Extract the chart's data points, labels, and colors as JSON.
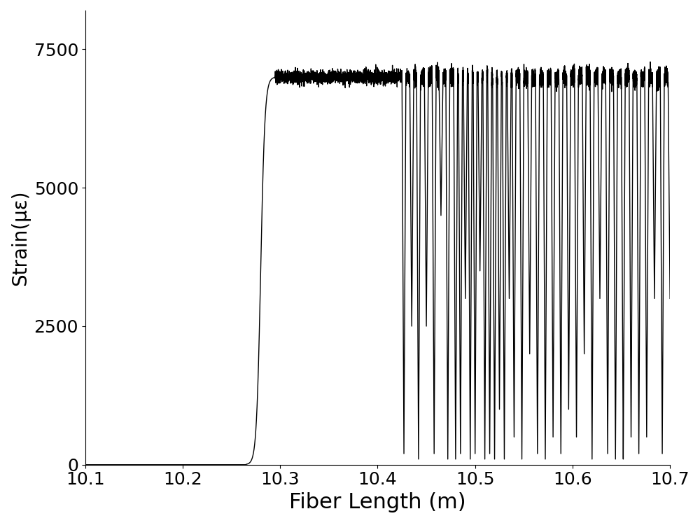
{
  "title": "",
  "xlabel": "Fiber Length (m)",
  "ylabel": "Strain(με)",
  "xlim": [
    10.1,
    10.7
  ],
  "ylim": [
    0,
    8200
  ],
  "yticks": [
    0,
    2500,
    5000,
    7500
  ],
  "xticks": [
    10.1,
    10.2,
    10.3,
    10.4,
    10.5,
    10.6,
    10.7
  ],
  "line_color": "#000000",
  "line_width": 1.0,
  "background_color": "#ffffff",
  "flat_level": 7000,
  "rise_start": 10.265,
  "rise_end": 10.295,
  "flat_end": 10.425,
  "xlabel_fontsize": 22,
  "ylabel_fontsize": 20,
  "tick_fontsize": 18,
  "flat_noise_std": 60,
  "spike_region_start": 10.425,
  "spike_region_end": 10.7,
  "n_points_base": 8000
}
